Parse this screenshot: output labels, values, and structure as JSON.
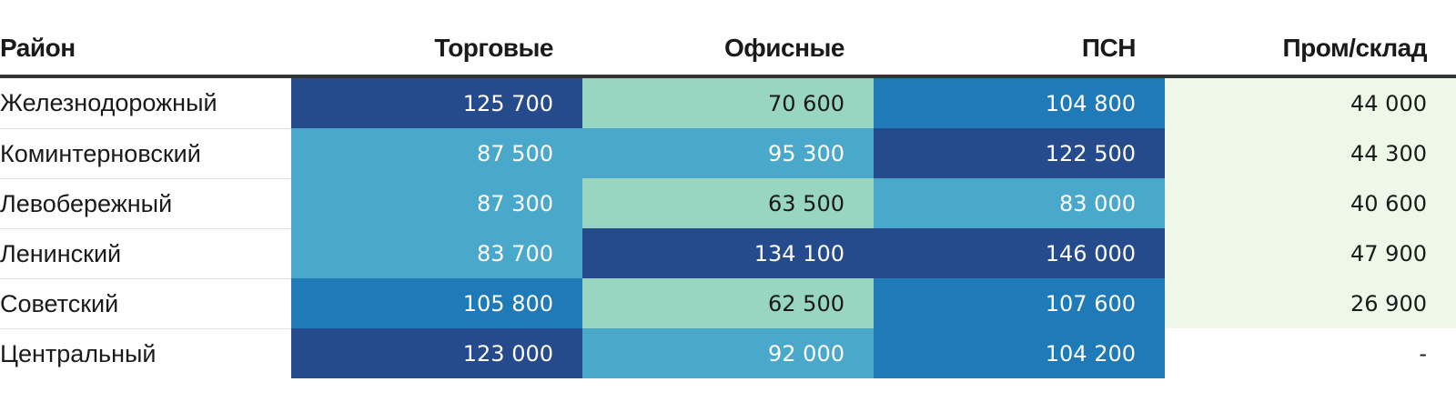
{
  "chart_data": {
    "type": "table",
    "columns": [
      "Район",
      "Торговые",
      "Офисные",
      "ПСН",
      "Пром/склад"
    ],
    "rows": [
      {
        "district": "Железнодорожный",
        "values": [
          "125 700",
          "70 600",
          "104 800",
          "44 000"
        ]
      },
      {
        "district": "Коминтерновский",
        "values": [
          "87 500",
          "95 300",
          "122 500",
          "44 300"
        ]
      },
      {
        "district": "Левобережный",
        "values": [
          "87 300",
          "63 500",
          "83 000",
          "40 600"
        ]
      },
      {
        "district": "Ленинский",
        "values": [
          "83 700",
          "134 100",
          "146 000",
          "47 900"
        ]
      },
      {
        "district": "Советский",
        "values": [
          "105 800",
          "62 500",
          "107 600",
          "26 900"
        ]
      },
      {
        "district": "Центральный",
        "values": [
          "123 000",
          "92 000",
          "104 200",
          "-"
        ]
      }
    ],
    "cell_colors": [
      [
        "#264b8c",
        "#98d6c2",
        "#1f7ab8",
        "#eef8e8"
      ],
      [
        "#4aa8cb",
        "#4aa8cb",
        "#264b8c",
        "#eef8e8"
      ],
      [
        "#4aa8cb",
        "#98d6c2",
        "#4aa8cb",
        "#eef8e8"
      ],
      [
        "#4aa8cb",
        "#264b8c",
        "#264b8c",
        "#eef8e8"
      ],
      [
        "#1f7ab8",
        "#98d6c2",
        "#1f7ab8",
        "#eef8e8"
      ],
      [
        "#264b8c",
        "#4aa8cb",
        "#1f7ab8",
        "#ffffff"
      ]
    ],
    "cell_text_colors": [
      [
        "#ffffff",
        "#1a1a1a",
        "#ffffff",
        "#1a1a1a"
      ],
      [
        "#ffffff",
        "#ffffff",
        "#ffffff",
        "#1a1a1a"
      ],
      [
        "#ffffff",
        "#1a1a1a",
        "#ffffff",
        "#1a1a1a"
      ],
      [
        "#ffffff",
        "#ffffff",
        "#ffffff",
        "#1a1a1a"
      ],
      [
        "#ffffff",
        "#1a1a1a",
        "#ffffff",
        "#1a1a1a"
      ],
      [
        "#ffffff",
        "#ffffff",
        "#ffffff",
        "#1a1a1a"
      ]
    ]
  }
}
